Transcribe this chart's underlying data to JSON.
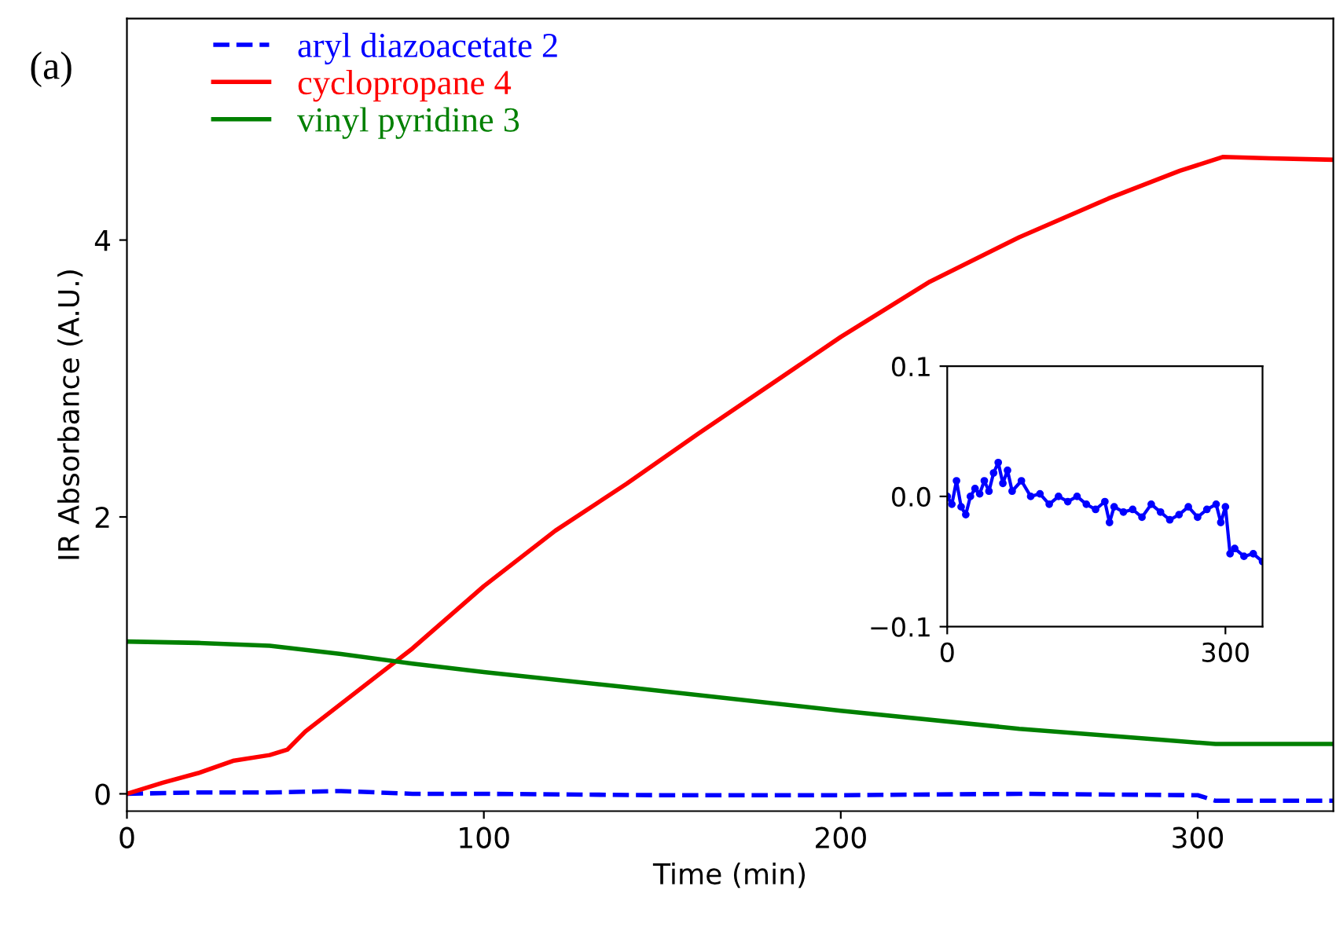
{
  "chart_data": [
    {
      "type": "line",
      "xlabel": "Time (min)",
      "ylabel": "IR Absorbance (A.U.)",
      "annotations": [
        "(a)"
      ],
      "xlim": [
        0,
        338
      ],
      "ylim": [
        -0.125,
        5.6
      ],
      "xticks": [
        0,
        100,
        200,
        300
      ],
      "yticks": [
        0,
        2,
        4
      ],
      "grid": false,
      "legend": "top left",
      "series": [
        {
          "name": "aryl diazoacetate 2",
          "color": "#0000ff",
          "line_style": "dashed",
          "x": [
            0,
            20,
            40,
            60,
            80,
            100,
            150,
            200,
            250,
            300,
            305,
            338
          ],
          "values": [
            0,
            0.01,
            0.01,
            0.02,
            0.0,
            0.0,
            -0.01,
            -0.01,
            0.0,
            -0.01,
            -0.05,
            -0.05
          ]
        },
        {
          "name": "cyclopropane 4",
          "color": "#ff0000",
          "line_style": "solid",
          "x": [
            0,
            10,
            20,
            30,
            40,
            45,
            50,
            60,
            70,
            80,
            100,
            120,
            140,
            160,
            180,
            200,
            225,
            250,
            275,
            295,
            307,
            320,
            338
          ],
          "values": [
            0,
            0.08,
            0.15,
            0.24,
            0.28,
            0.32,
            0.45,
            0.65,
            0.85,
            1.05,
            1.5,
            1.9,
            2.24,
            2.6,
            2.95,
            3.3,
            3.7,
            4.02,
            4.3,
            4.5,
            4.6,
            4.59,
            4.58
          ]
        },
        {
          "name": "vinyl pyridine 3",
          "color": "#008000",
          "line_style": "solid",
          "x": [
            0,
            20,
            40,
            60,
            80,
            100,
            140,
            200,
            250,
            290,
            305,
            338
          ],
          "values": [
            1.1,
            1.09,
            1.07,
            1.01,
            0.94,
            0.88,
            0.77,
            0.6,
            0.47,
            0.39,
            0.36,
            0.36
          ]
        }
      ]
    },
    {
      "type": "line",
      "xlim": [
        0,
        340
      ],
      "ylim": [
        -0.1,
        0.1
      ],
      "xticks": [
        0,
        300
      ],
      "yticks": [
        0.1,
        {
          "value": 0,
          "label": "0.0"
        },
        {
          "value": -0.1,
          "label": "−0.1"
        }
      ],
      "grid": false,
      "legend": false,
      "marker": "circle",
      "series": [
        {
          "color": "#0000ff",
          "line_style": "solid",
          "x": [
            0,
            5,
            10,
            15,
            20,
            25,
            30,
            35,
            40,
            45,
            50,
            55,
            60,
            65,
            70,
            80,
            90,
            100,
            110,
            120,
            130,
            140,
            150,
            160,
            170,
            175,
            180,
            190,
            200,
            210,
            220,
            230,
            240,
            250,
            260,
            270,
            280,
            290,
            295,
            300,
            305,
            310,
            320,
            330,
            340
          ],
          "values": [
            0.0,
            -0.006,
            0.012,
            -0.008,
            -0.014,
            0.0,
            0.006,
            0.002,
            0.012,
            0.004,
            0.018,
            0.026,
            0.01,
            0.02,
            0.004,
            0.012,
            0.0,
            0.002,
            -0.006,
            0.0,
            -0.004,
            0.0,
            -0.006,
            -0.01,
            -0.004,
            -0.02,
            -0.008,
            -0.012,
            -0.01,
            -0.016,
            -0.006,
            -0.012,
            -0.018,
            -0.014,
            -0.008,
            -0.016,
            -0.01,
            -0.006,
            -0.02,
            -0.008,
            -0.044,
            -0.04,
            -0.046,
            -0.044,
            -0.05
          ]
        }
      ]
    }
  ]
}
